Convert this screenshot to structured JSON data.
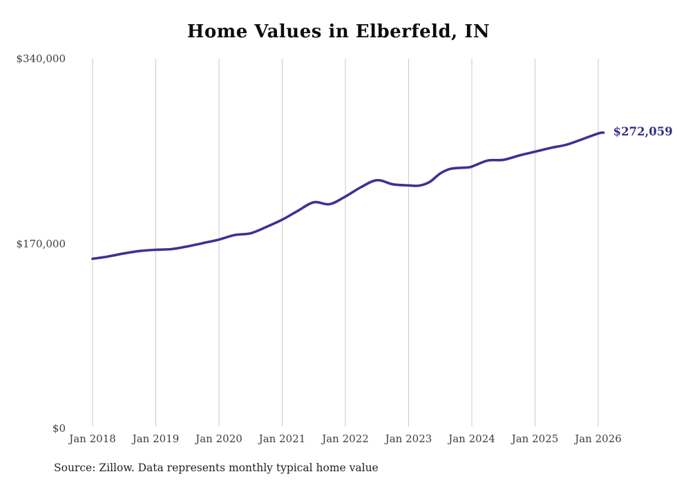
{
  "chart": {
    "title": "Home Values in Elberfeld, IN",
    "source_note": "Source: Zillow. Data represents monthly typical home value",
    "end_label": "$272,059",
    "colors": {
      "line": "#3a3391",
      "end_label": "#332f8a",
      "grid": "#c9c9c9",
      "axis_text": "#3d3d3d",
      "title_text": "#0c0c0c",
      "source_text": "#1f1f1f",
      "background": "#ffffff"
    }
  },
  "chart_data": {
    "type": "line",
    "title": "Home Values in Elberfeld, IN",
    "xlabel": "",
    "ylabel": "",
    "ylim": [
      0,
      340000
    ],
    "x_range": [
      "2018-01",
      "2026-02"
    ],
    "grid": "vertical-only",
    "legend": "none",
    "y_ticks": [
      {
        "label": "$0",
        "value": 0
      },
      {
        "label": "$170,000",
        "value": 170000
      },
      {
        "label": "$340,000",
        "value": 340000
      }
    ],
    "x_ticks": [
      "Jan 2018",
      "Jan 2019",
      "Jan 2020",
      "Jan 2021",
      "Jan 2022",
      "Jan 2023",
      "Jan 2024",
      "Jan 2025",
      "Jan 2026"
    ],
    "series": [
      {
        "name": "Monthly typical home value",
        "color": "#3a3391",
        "final_value": 272059,
        "x": [
          "2018-01",
          "2018-04",
          "2018-07",
          "2018-10",
          "2019-01",
          "2019-04",
          "2019-07",
          "2019-10",
          "2020-01",
          "2020-04",
          "2020-07",
          "2020-10",
          "2021-01",
          "2021-04",
          "2021-07",
          "2021-10",
          "2022-01",
          "2022-04",
          "2022-07",
          "2022-10",
          "2023-01",
          "2023-03",
          "2023-05",
          "2023-07",
          "2023-09",
          "2023-12",
          "2024-01",
          "2024-04",
          "2024-07",
          "2024-10",
          "2025-01",
          "2025-04",
          "2025-07",
          "2025-10",
          "2026-01",
          "2026-02"
        ],
        "values": [
          156000,
          158200,
          161000,
          163200,
          164300,
          164900,
          167400,
          170500,
          173700,
          177900,
          179500,
          185300,
          192000,
          200200,
          208000,
          206200,
          213300,
          222000,
          228300,
          224500,
          223500,
          223300,
          226700,
          234500,
          238800,
          240000,
          240800,
          246300,
          247000,
          251000,
          254500,
          258000,
          261000,
          266000,
          271300,
          272059
        ]
      }
    ]
  }
}
